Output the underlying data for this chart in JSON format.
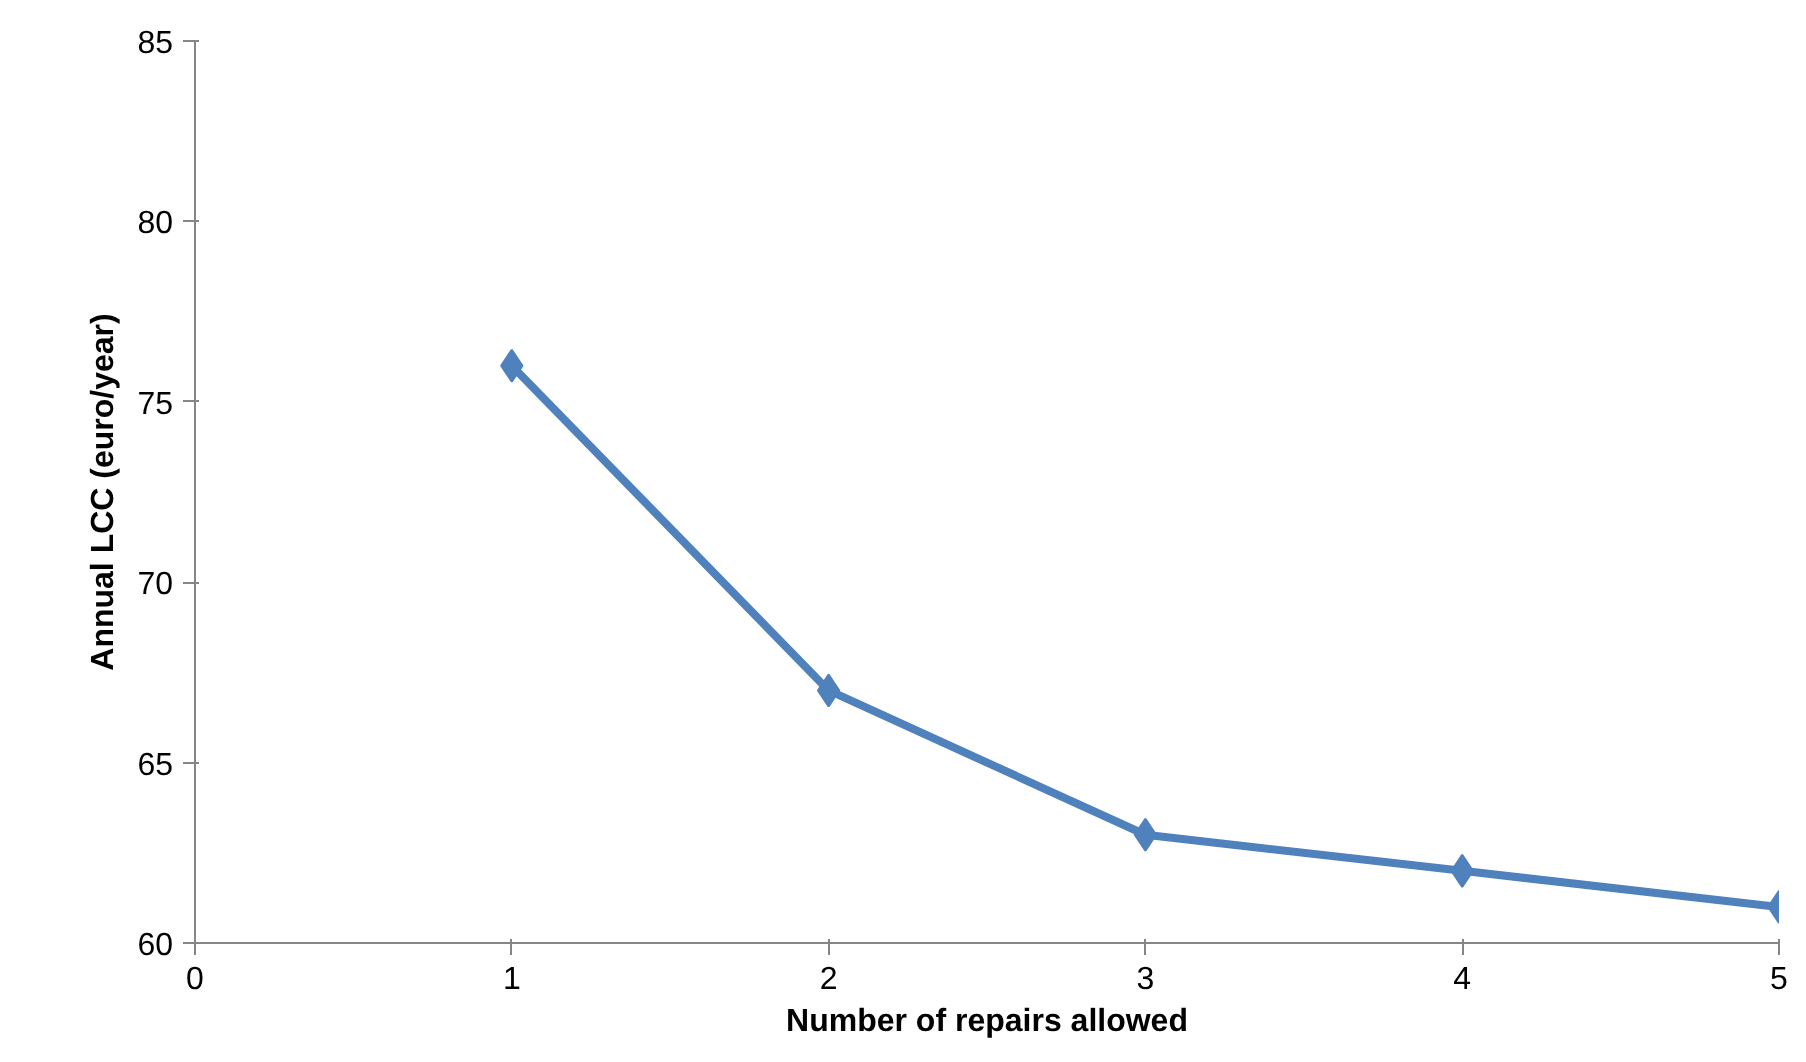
{
  "chart_data": {
    "type": "line",
    "xlabel": "Number of repairs allowed",
    "ylabel": "Annual LCC (euro/year)",
    "x": [
      1,
      2,
      3,
      4,
      5
    ],
    "series": [
      {
        "color": "#4f81bd",
        "values": [
          76,
          67,
          63,
          62,
          61
        ]
      }
    ],
    "xlim": [
      0,
      5
    ],
    "xticks": [
      0,
      1,
      2,
      3,
      4,
      5
    ],
    "ylim": [
      60,
      85
    ],
    "yticks": [
      60,
      65,
      70,
      75,
      80,
      85
    ],
    "grid": false,
    "marker": "diamond",
    "line_style": "solid"
  }
}
